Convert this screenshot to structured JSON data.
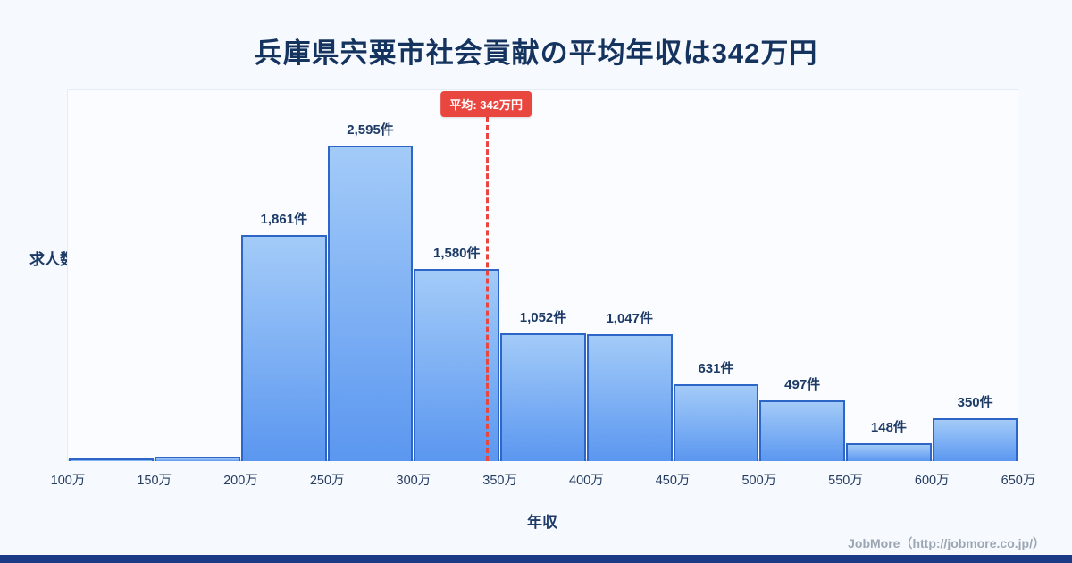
{
  "meta": {
    "title": "兵庫県宍粟市社会貢献の平均年収は342万円",
    "footer": "JobMore（http://jobmore.co.jp/）"
  },
  "chart_data": {
    "type": "bar",
    "title": "兵庫県宍粟市社会貢献の平均年収は342万円",
    "xlabel": "年収",
    "ylabel": "求人数",
    "x_ticks": [
      "100万",
      "150万",
      "200万",
      "250万",
      "300万",
      "350万",
      "400万",
      "450万",
      "500万",
      "550万",
      "600万",
      "650万"
    ],
    "bins": [
      {
        "range": "100万-150万",
        "value": 15,
        "label": ""
      },
      {
        "range": "150万-200万",
        "value": 40,
        "label": ""
      },
      {
        "range": "200万-250万",
        "value": 1861,
        "label": "1,861件"
      },
      {
        "range": "250万-300万",
        "value": 2595,
        "label": "2,595件"
      },
      {
        "range": "300万-350万",
        "value": 1580,
        "label": "1,580件"
      },
      {
        "range": "350万-400万",
        "value": 1052,
        "label": "1,052件"
      },
      {
        "range": "400万-450万",
        "value": 1047,
        "label": "1,047件"
      },
      {
        "range": "450万-500万",
        "value": 631,
        "label": "631件"
      },
      {
        "range": "500万-550万",
        "value": 497,
        "label": "497件"
      },
      {
        "range": "550万-600万",
        "value": 148,
        "label": "148件"
      },
      {
        "range": "600万-650万",
        "value": 350,
        "label": "350件"
      }
    ],
    "average": {
      "value": 342,
      "label": "平均: 342万円"
    },
    "axis_range_man": [
      100,
      650
    ],
    "ylim": [
      0,
      3050
    ],
    "grid": "off",
    "legend": "none",
    "colors": {
      "bar_top": "#a3cbf8",
      "bar_bottom": "#5b97f0",
      "bar_border": "#2e66c8",
      "average_line": "#e8463f",
      "title_text": "#14335f",
      "footer_accent": "#1c3b87",
      "background": "#f6f9fd"
    }
  }
}
